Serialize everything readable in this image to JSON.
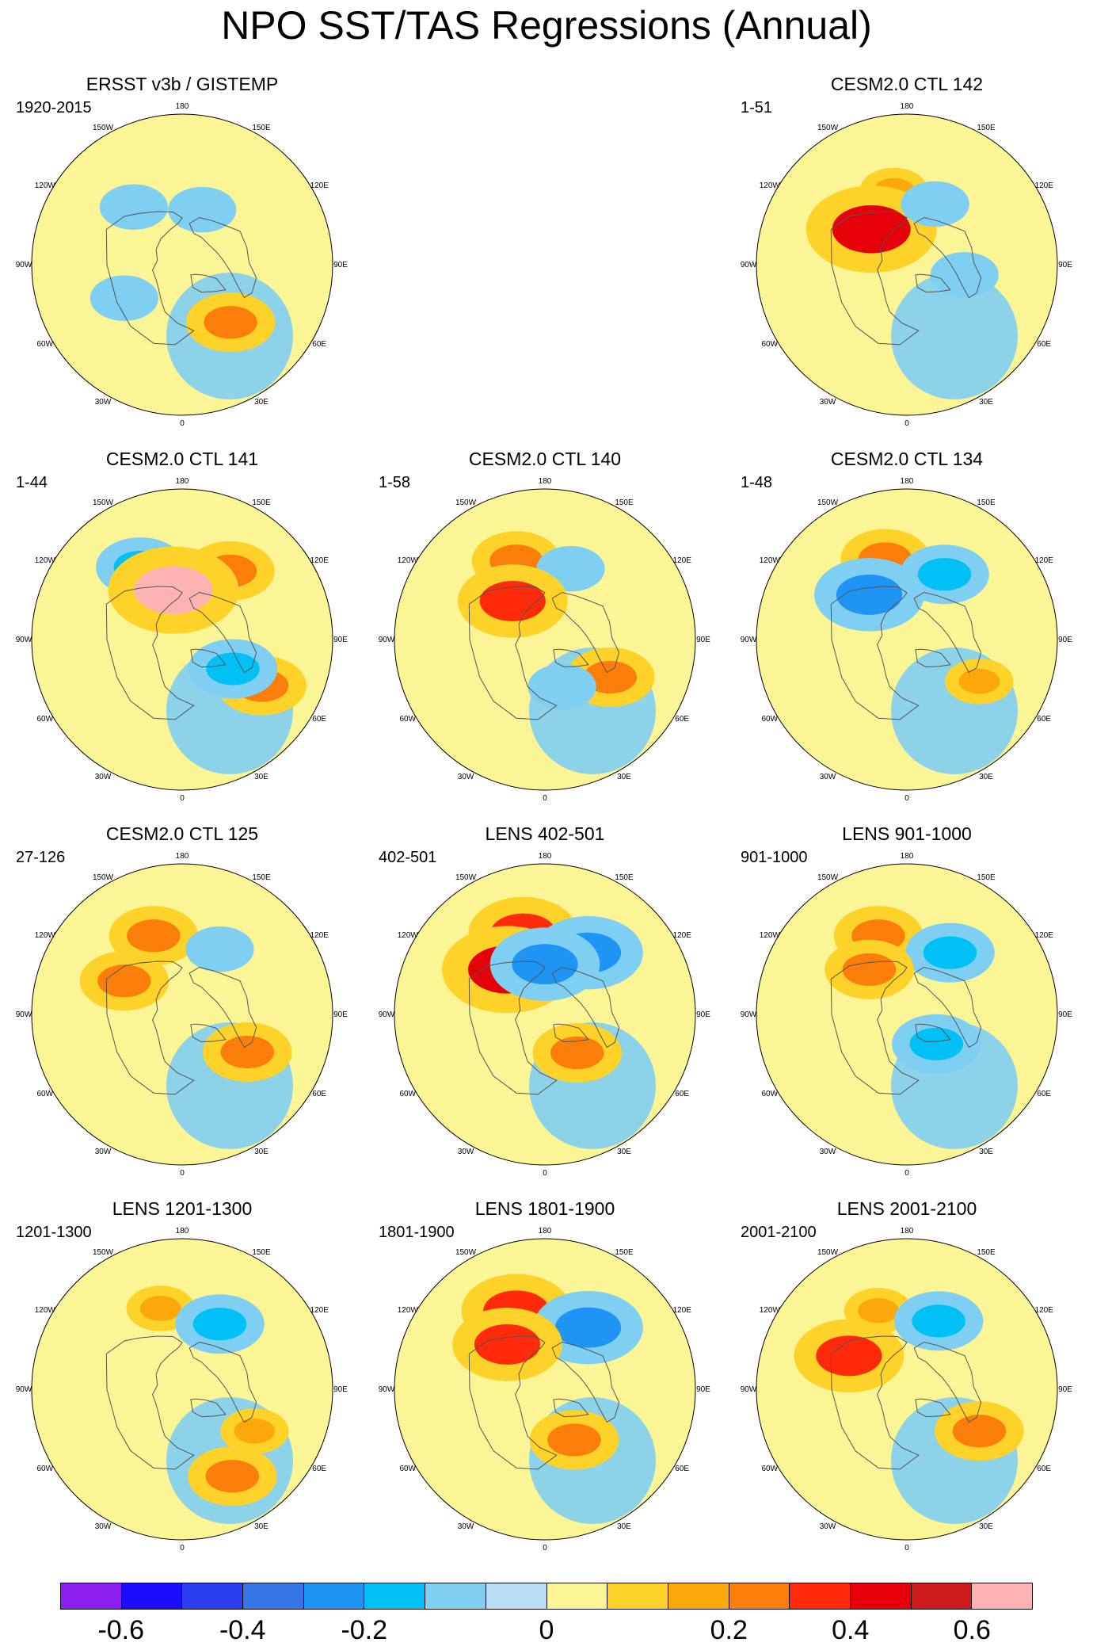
{
  "title": "NPO SST/TAS Regressions (Annual)",
  "longitude_labels": [
    "180",
    "150E",
    "120E",
    "90E",
    "60E",
    "30E",
    "0",
    "30W",
    "60W",
    "90W",
    "120W",
    "150W"
  ],
  "panels": [
    {
      "title": "ERSST v3b / GISTEMP",
      "period": "1920-2015",
      "anomalies": [
        {
          "lon": 140,
          "lat": 45,
          "value": -0.1
        },
        {
          "lon": 60,
          "lat": 50,
          "value": -0.1
        },
        {
          "lon": 320,
          "lat": 45,
          "value": 0.2
        },
        {
          "lon": 200,
          "lat": 55,
          "value": -0.1
        }
      ]
    },
    {
      "title": "CESM2.0 CTL 142",
      "period": "1-51",
      "anomalies": [
        {
          "lon": 170,
          "lat": 45,
          "value": 0.1
        },
        {
          "lon": 135,
          "lat": 60,
          "value": 0.4
        },
        {
          "lon": 205,
          "lat": 50,
          "value": -0.1
        },
        {
          "lon": 280,
          "lat": 55,
          "value": -0.1
        }
      ]
    },
    {
      "title": "CESM2.0 CTL 141",
      "period": "1-44",
      "anomalies": [
        {
          "lon": 215,
          "lat": 40,
          "value": 0.2
        },
        {
          "lon": 150,
          "lat": 40,
          "value": -0.2
        },
        {
          "lon": 170,
          "lat": 60,
          "value": 0.6
        },
        {
          "lon": 300,
          "lat": 35,
          "value": 0.2
        },
        {
          "lon": 300,
          "lat": 55,
          "value": -0.2
        }
      ]
    },
    {
      "title": "CESM2.0 CTL 140",
      "period": "1-58",
      "anomalies": [
        {
          "lon": 160,
          "lat": 40,
          "value": 0.2
        },
        {
          "lon": 200,
          "lat": 45,
          "value": -0.1
        },
        {
          "lon": 140,
          "lat": 60,
          "value": 0.3
        },
        {
          "lon": 300,
          "lat": 45,
          "value": 0.2
        },
        {
          "lon": 340,
          "lat": 60,
          "value": -0.1
        }
      ]
    },
    {
      "title": "CESM2.0 CTL 134",
      "period": "1-48",
      "anomalies": [
        {
          "lon": 165,
          "lat": 40,
          "value": 0.2
        },
        {
          "lon": 210,
          "lat": 45,
          "value": -0.2
        },
        {
          "lon": 140,
          "lat": 55,
          "value": -0.3
        },
        {
          "lon": 300,
          "lat": 40,
          "value": 0.1
        }
      ]
    },
    {
      "title": "CESM2.0 CTL 125",
      "period": "27-126",
      "anomalies": [
        {
          "lon": 160,
          "lat": 40,
          "value": 0.2
        },
        {
          "lon": 210,
          "lat": 45,
          "value": -0.1
        },
        {
          "lon": 300,
          "lat": 45,
          "value": 0.2
        },
        {
          "lon": 120,
          "lat": 50,
          "value": 0.2
        }
      ]
    },
    {
      "title": "LENS 402-501",
      "period": "402-501",
      "anomalies": [
        {
          "lon": 165,
          "lat": 40,
          "value": 0.3
        },
        {
          "lon": 215,
          "lat": 45,
          "value": -0.3
        },
        {
          "lon": 140,
          "lat": 55,
          "value": 0.4
        },
        {
          "lon": 180,
          "lat": 60,
          "value": -0.3
        },
        {
          "lon": 320,
          "lat": 60,
          "value": 0.2
        }
      ]
    },
    {
      "title": "LENS 901-1000",
      "period": "901-1000",
      "anomalies": [
        {
          "lon": 160,
          "lat": 40,
          "value": 0.2
        },
        {
          "lon": 215,
          "lat": 45,
          "value": -0.2
        },
        {
          "lon": 140,
          "lat": 55,
          "value": 0.2
        },
        {
          "lon": 315,
          "lat": 65,
          "value": -0.2
        }
      ]
    },
    {
      "title": "LENS 1201-1300",
      "period": "1201-1300",
      "anomalies": [
        {
          "lon": 165,
          "lat": 40,
          "value": 0.1
        },
        {
          "lon": 210,
          "lat": 45,
          "value": -0.2
        },
        {
          "lon": 300,
          "lat": 40,
          "value": 0.1
        },
        {
          "lon": 330,
          "lat": 30,
          "value": 0.2
        }
      ]
    },
    {
      "title": "LENS 1801-1900",
      "period": "1801-1900",
      "anomalies": [
        {
          "lon": 160,
          "lat": 40,
          "value": 0.3
        },
        {
          "lon": 215,
          "lat": 45,
          "value": -0.3
        },
        {
          "lon": 140,
          "lat": 55,
          "value": 0.3
        },
        {
          "lon": 330,
          "lat": 55,
          "value": 0.2
        }
      ]
    },
    {
      "title": "LENS 2001-2100",
      "period": "2001-2100",
      "anomalies": [
        {
          "lon": 160,
          "lat": 40,
          "value": 0.1
        },
        {
          "lon": 205,
          "lat": 45,
          "value": -0.2
        },
        {
          "lon": 120,
          "lat": 50,
          "value": 0.3
        },
        {
          "lon": 300,
          "lat": 40,
          "value": 0.2
        }
      ]
    }
  ],
  "colorbar": {
    "colors": [
      "#8a1ff0",
      "#1a0cff",
      "#2b3ef0",
      "#3575e8",
      "#1e94f5",
      "#00c0f5",
      "#7fcff2",
      "#b7def2",
      "#fcf596",
      "#fed228",
      "#fda80a",
      "#fb7d0a",
      "#fe2a0a",
      "#e6000a",
      "#ce1a1a",
      "#feb2b2"
    ],
    "labels": [
      "-0.6",
      "-0.4",
      "-0.2",
      "0",
      "0.2",
      "0.4",
      "0.6"
    ],
    "label_values": [
      -0.6,
      -0.4,
      -0.2,
      0,
      0.2,
      0.4,
      0.6
    ],
    "boundaries": [
      -0.7,
      -0.6,
      -0.5,
      -0.4,
      -0.3,
      -0.2,
      -0.1,
      -0.05,
      0,
      0.05,
      0.1,
      0.2,
      0.3,
      0.4,
      0.5,
      0.6,
      0.7
    ]
  }
}
